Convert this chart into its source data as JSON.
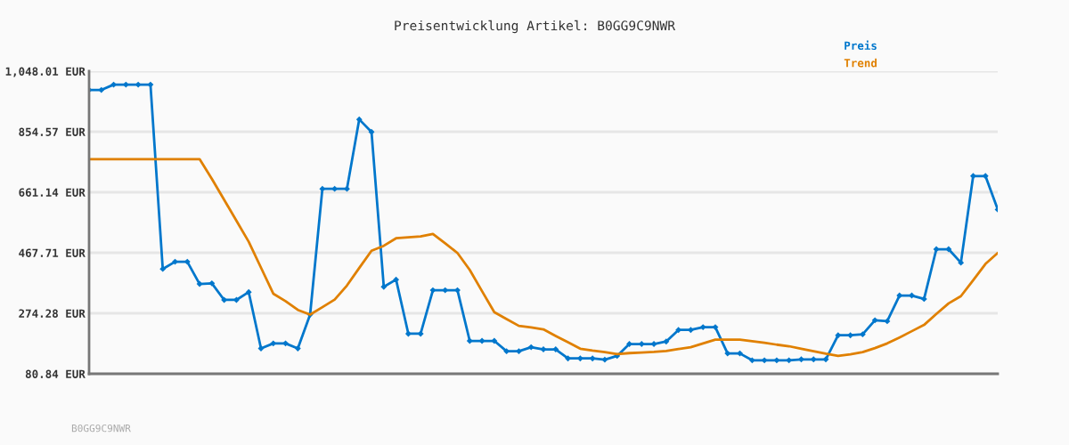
{
  "chart_data": {
    "type": "line",
    "title": "Preisentwicklung Artikel: B0GG9C9NWR",
    "categories": [
      null,
      null,
      null,
      null,
      null,
      null,
      null,
      null,
      null,
      null,
      null,
      null,
      null,
      null,
      null,
      null,
      null,
      null,
      null,
      null,
      null,
      null,
      null,
      null,
      null,
      null,
      null,
      null,
      null,
      null,
      null,
      null,
      null,
      null,
      null,
      null,
      null,
      null,
      null,
      null,
      null,
      null,
      null,
      null,
      null,
      null,
      null,
      null,
      null,
      null,
      null,
      null,
      null,
      null,
      null,
      null,
      null,
      null,
      null,
      null,
      null,
      null,
      null,
      null,
      null,
      null,
      null,
      null,
      null,
      null,
      null,
      null,
      null,
      null,
      null
    ],
    "series": [
      {
        "name": "Preis",
        "color": "#0077cc",
        "marker": "diamond",
        "values": [
          988,
          988,
          1005,
          1005,
          1005,
          1005,
          416,
          439,
          439,
          368,
          370,
          317,
          317,
          342,
          162,
          178,
          178,
          162,
          270,
          672,
          672,
          672,
          894,
          854,
          359,
          382,
          209,
          209,
          348,
          348,
          348,
          186,
          186,
          186,
          153,
          153,
          166,
          159,
          159,
          130,
          130,
          130,
          126,
          138,
          176,
          176,
          176,
          184,
          221,
          221,
          230,
          230,
          146,
          146,
          124,
          124,
          124,
          124,
          127,
          127,
          127,
          204,
          204,
          207,
          252,
          249,
          331,
          331,
          320,
          479,
          479,
          436,
          713,
          713,
          606
        ]
      },
      {
        "name": "Trend",
        "color": "#e08000",
        "marker": "none",
        "values": [
          767,
          767,
          767,
          767,
          767,
          767,
          767,
          767,
          767,
          767,
          704,
          637,
          570,
          503,
          420,
          337,
          313,
          285,
          270,
          294,
          318,
          363,
          419,
          474,
          490,
          514,
          517,
          520,
          528,
          498,
          467,
          413,
          345,
          278,
          256,
          234,
          229,
          223,
          202,
          182,
          161,
          155,
          150,
          144,
          147,
          149,
          151,
          154,
          160,
          166,
          178,
          190,
          190,
          190,
          185,
          180,
          174,
          169,
          161,
          153,
          145,
          138,
          143,
          150,
          163,
          178,
          197,
          217,
          237,
          272,
          306,
          329,
          380,
          432,
          467
        ]
      }
    ],
    "ylim": [
      80.84,
      1048.01
    ],
    "yticks": [
      {
        "value": 80.84,
        "label": "80.84 EUR"
      },
      {
        "value": 274.28,
        "label": "274.28 EUR"
      },
      {
        "value": 467.71,
        "label": "467.71 EUR"
      },
      {
        "value": 661.14,
        "label": "661.14 EUR"
      },
      {
        "value": 854.57,
        "label": "854.57 EUR"
      },
      {
        "value": 1048.01,
        "label": "1,048.01 EUR"
      }
    ],
    "grid": "y",
    "legend": "top right",
    "line_style": "solid",
    "annotations": [
      "B0GG9C9NWR"
    ]
  }
}
